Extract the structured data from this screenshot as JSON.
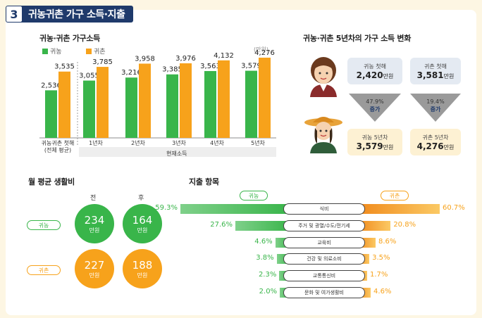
{
  "header": {
    "number": "3",
    "title": "귀농귀촌 가구 소득·지출"
  },
  "colors": {
    "green": "#39b54a",
    "orange": "#f7a21b",
    "navy": "#1f3a6b",
    "grey": "#999999",
    "light_blue": "#e4eaf2",
    "light_yellow": "#fdf1d3"
  },
  "income_chart": {
    "title": "귀농·귀촌 가구소득",
    "unit": "(만원)",
    "legend": {
      "farm": "귀농",
      "rural": "귀촌"
    },
    "group_label": "현재소득"
  },
  "change_section": {
    "title": "귀농·귀촌 5년차의 가구 소득 변화",
    "farm_first": {
      "label": "귀농 첫해",
      "value": "2,420",
      "unit": "만원"
    },
    "rural_first": {
      "label": "귀촌 첫해",
      "value": "3,581",
      "unit": "만원"
    },
    "farm_growth": {
      "pct": "47.9%",
      "label": "증가"
    },
    "rural_growth": {
      "pct": "19.4%",
      "label": "증가"
    },
    "farm_fifth": {
      "label": "귀농 5년차",
      "value": "3,579",
      "unit": "만원"
    },
    "rural_fifth": {
      "label": "귀촌 5년차",
      "value": "4,276",
      "unit": "만원"
    }
  },
  "living_cost": {
    "title": "월 평균 생활비",
    "before": "전",
    "after": "후",
    "rows": [
      {
        "label": "귀농",
        "before": "234",
        "after": "164",
        "unit": "만원"
      },
      {
        "label": "귀촌",
        "before": "227",
        "after": "188",
        "unit": "만원"
      }
    ]
  },
  "spending": {
    "title": "지출 항목",
    "farm_label": "귀농",
    "rural_label": "귀촌"
  },
  "chart_data": [
    {
      "type": "bar",
      "title": "귀농·귀촌 가구소득",
      "categories": [
        "귀농귀촌 첫해\n(전체 평균)",
        "1년차",
        "2년차",
        "3년차",
        "4년차",
        "5년차"
      ],
      "series": [
        {
          "name": "귀농",
          "values": [
            2536,
            3055,
            3216,
            3385,
            3563,
            3579
          ],
          "labels": [
            "2,536",
            "3,055",
            "3,216",
            "3,385",
            "3,563",
            "3,579"
          ]
        },
        {
          "name": "귀촌",
          "values": [
            3535,
            3785,
            3958,
            3976,
            4132,
            4276
          ],
          "labels": [
            "3,535",
            "3,785",
            "3,958",
            "3,976",
            "4,132",
            "4,276"
          ]
        }
      ],
      "ylim": [
        0,
        4500
      ]
    },
    {
      "type": "bar",
      "title": "지출 항목",
      "categories": [
        "식비",
        "주거 및 광열/수도/전기세",
        "교육비",
        "건강 및 의료소비",
        "교통통신비",
        "문화 및 여가생활비"
      ],
      "series": [
        {
          "name": "귀농",
          "values": [
            59.3,
            27.6,
            4.6,
            3.8,
            2.3,
            2.0
          ],
          "labels": [
            "59.3%",
            "27.6%",
            "4.6%",
            "3.8%",
            "2.3%",
            "2.0%"
          ]
        },
        {
          "name": "귀촌",
          "values": [
            60.7,
            20.8,
            8.6,
            3.5,
            1.7,
            4.6
          ],
          "labels": [
            "60.7%",
            "20.8%",
            "8.6%",
            "3.5%",
            "1.7%",
            "4.6%"
          ]
        }
      ]
    }
  ]
}
